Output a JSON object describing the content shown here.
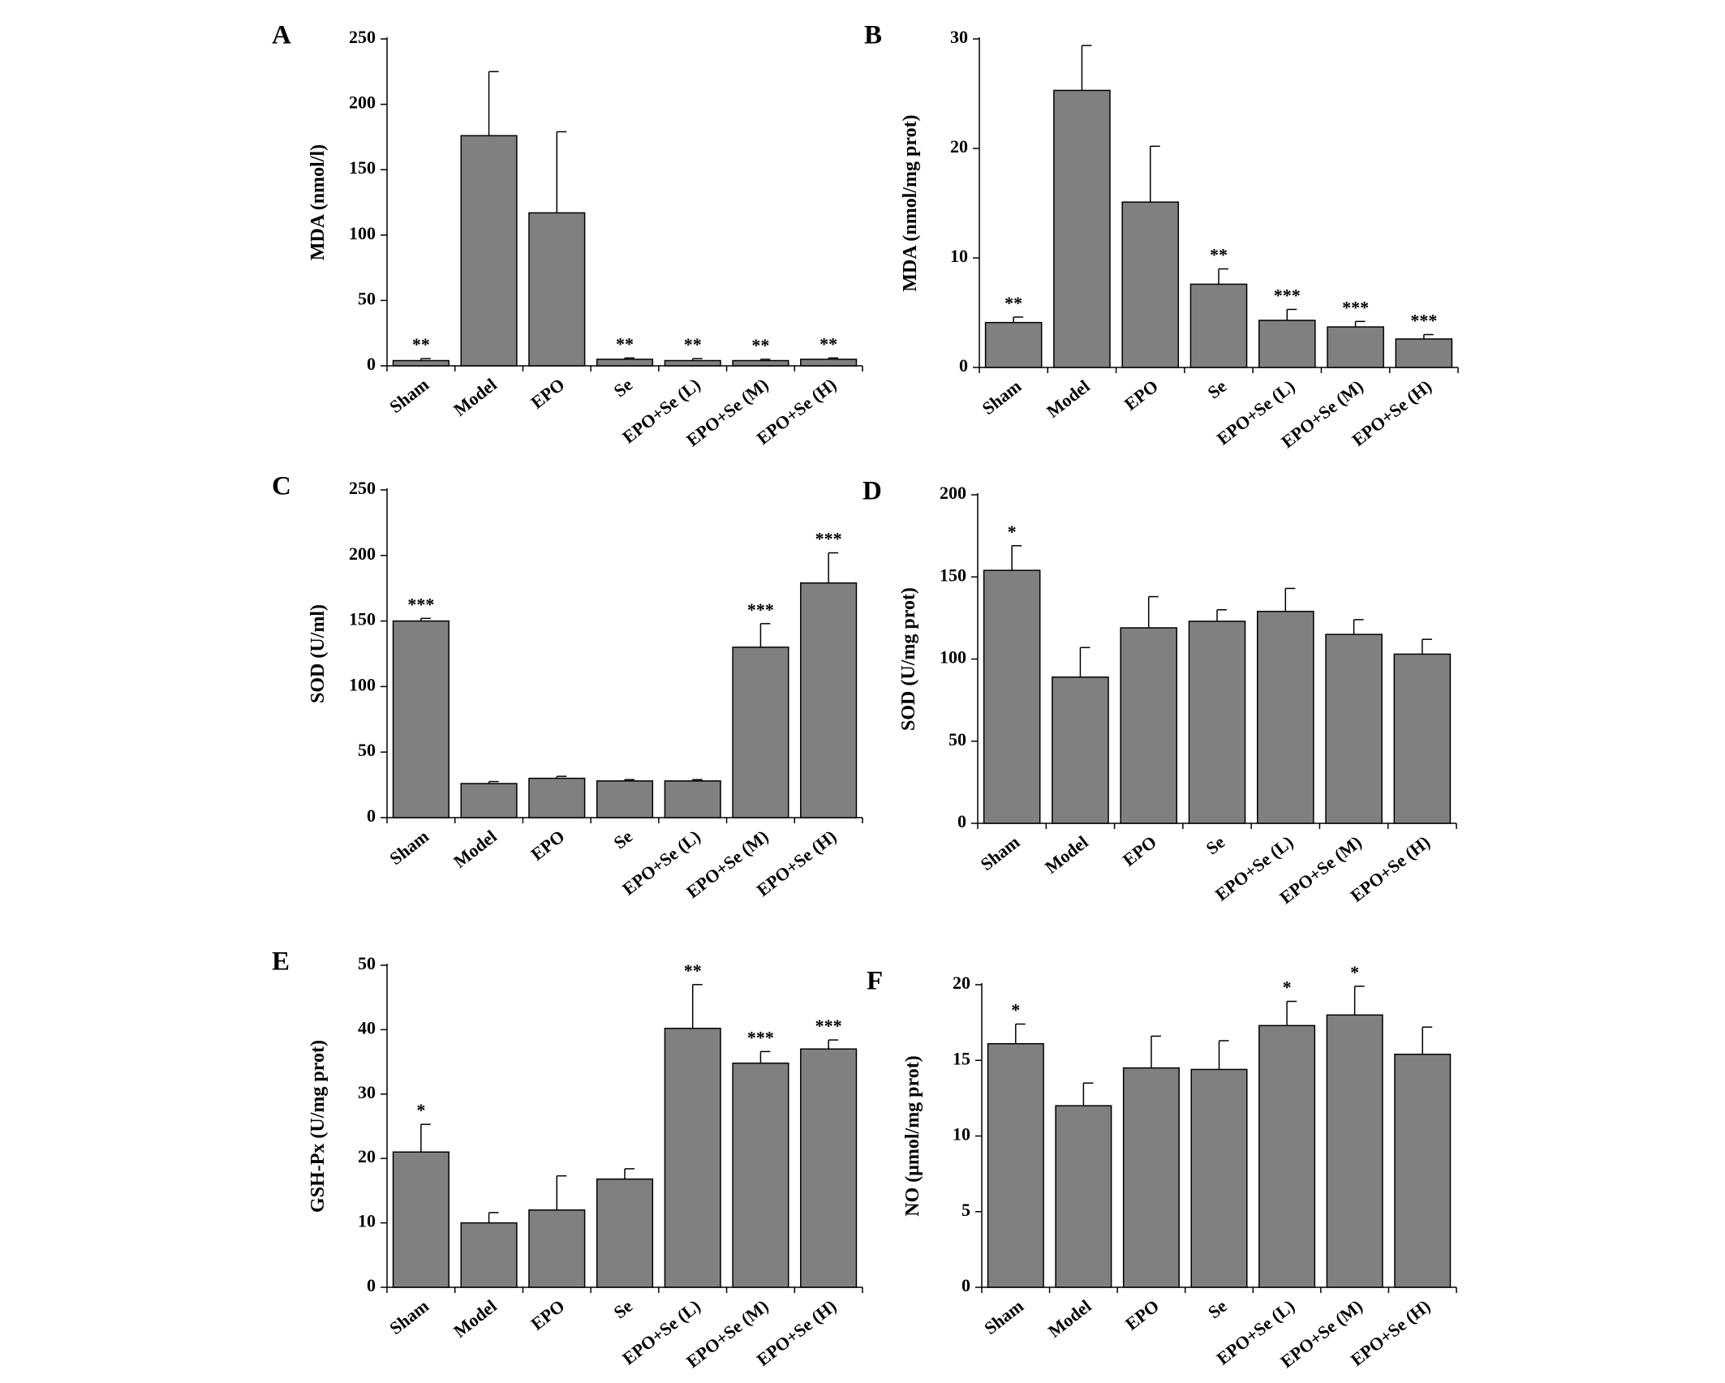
{
  "chart_data": [
    {
      "type": "bar",
      "panel": "A",
      "y_label": "MDA (nmol/l)",
      "categories": [
        "Sham",
        "Model",
        "EPO",
        "Se",
        "EPO+Se (L)",
        "EPO+Se (M)",
        "EPO+Se (H)"
      ],
      "values": [
        4,
        176,
        117,
        5,
        4,
        4,
        5
      ],
      "errors": [
        1.5,
        49,
        62,
        1,
        1.5,
        1,
        1
      ],
      "annotations": [
        "**",
        null,
        null,
        "**",
        "**",
        "**",
        "**"
      ],
      "color": "#808080",
      "ylim": [
        0,
        250
      ],
      "yticks": [
        0,
        50,
        100,
        150,
        200,
        250
      ]
    },
    {
      "type": "bar",
      "panel": "B",
      "y_label": "MDA (nmol/mg prot)",
      "categories": [
        "Sham",
        "Model",
        "EPO",
        "Se",
        "EPO+Se (L)",
        "EPO+Se (M)",
        "EPO+Se (H)"
      ],
      "values": [
        4.1,
        25.3,
        15.1,
        7.6,
        4.3,
        3.7,
        2.6
      ],
      "errors": [
        0.5,
        4.1,
        5.1,
        1.4,
        1.0,
        0.5,
        0.4
      ],
      "annotations": [
        "**",
        null,
        null,
        "**",
        "***",
        "***",
        "***"
      ],
      "color": "#808080",
      "ylim": [
        0,
        30
      ],
      "yticks": [
        0,
        10,
        20,
        30
      ]
    },
    {
      "type": "bar",
      "panel": "C",
      "y_label": "SOD (U/ml)",
      "categories": [
        "Sham",
        "Model",
        "EPO",
        "Se",
        "EPO+Se (L)",
        "EPO+Se (M)",
        "EPO+Se (H)"
      ],
      "values": [
        150,
        26,
        30,
        28,
        28,
        130,
        179
      ],
      "errors": [
        2,
        1.5,
        1.5,
        1,
        1,
        18,
        23
      ],
      "annotations": [
        "***",
        null,
        null,
        null,
        null,
        "***",
        "***"
      ],
      "color": "#808080",
      "ylim": [
        0,
        250
      ],
      "yticks": [
        0,
        50,
        100,
        150,
        200,
        250
      ]
    },
    {
      "type": "bar",
      "panel": "D",
      "y_label": "SOD (U/mg prot)",
      "categories": [
        "Sham",
        "Model",
        "EPO",
        "Se",
        "EPO+Se (L)",
        "EPO+Se (M)",
        "EPO+Se (H)"
      ],
      "values": [
        154,
        89,
        119,
        123,
        129,
        115,
        103
      ],
      "errors": [
        15,
        18,
        19,
        7,
        14,
        9,
        9
      ],
      "annotations": [
        "*",
        null,
        null,
        null,
        null,
        null,
        null
      ],
      "color": "#808080",
      "ylim": [
        0,
        200
      ],
      "yticks": [
        0,
        50,
        100,
        150,
        200
      ]
    },
    {
      "type": "bar",
      "panel": "E",
      "y_label": "GSH-Px (U/mg prot)",
      "categories": [
        "Sham",
        "Model",
        "EPO",
        "Se",
        "EPO+Se (L)",
        "EPO+Se (M)",
        "EPO+Se (H)"
      ],
      "values": [
        21,
        10,
        12,
        16.8,
        40.2,
        34.8,
        37
      ],
      "errors": [
        4.3,
        1.6,
        5.3,
        1.6,
        6.8,
        1.8,
        1.4
      ],
      "annotations": [
        "*",
        null,
        null,
        null,
        "**",
        "***",
        "***"
      ],
      "color": "#808080",
      "ylim": [
        0,
        50
      ],
      "yticks": [
        0,
        10,
        20,
        30,
        40,
        50
      ]
    },
    {
      "type": "bar",
      "panel": "F",
      "y_label": "NO (μmol/mg prot)",
      "categories": [
        "Sham",
        "Model",
        "EPO",
        "Se",
        "EPO+Se (L)",
        "EPO+Se (M)",
        "EPO+Se (H)"
      ],
      "values": [
        16.1,
        12,
        14.5,
        14.4,
        17.3,
        18,
        15.4
      ],
      "errors": [
        1.3,
        1.5,
        2.1,
        1.9,
        1.6,
        1.9,
        1.8
      ],
      "annotations": [
        "*",
        null,
        null,
        null,
        "*",
        "*",
        null
      ],
      "color": "#808080",
      "ylim": [
        0,
        20
      ],
      "yticks": [
        0,
        5,
        10,
        15,
        20
      ]
    }
  ]
}
